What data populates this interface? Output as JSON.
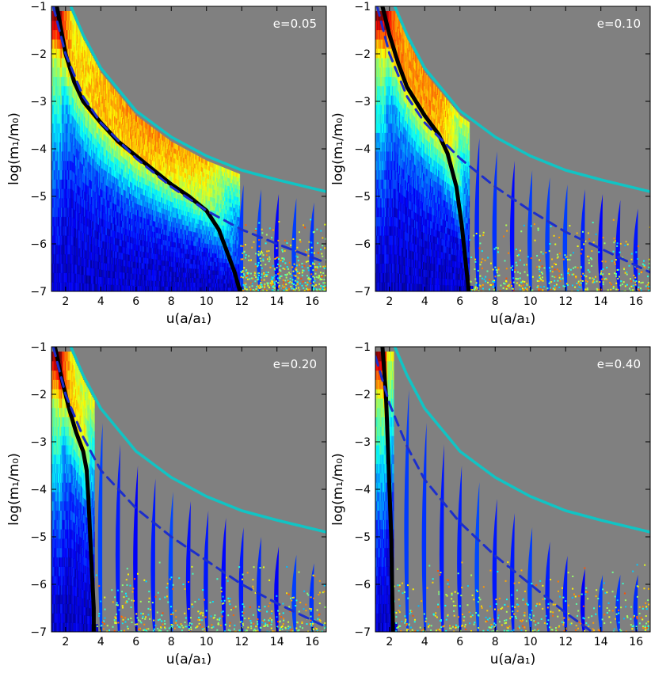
{
  "chart_data": [
    {
      "type": "heatmap",
      "label": "e=0.05",
      "xlabel": "u(a/a₁)",
      "ylabel": "log(m₁/m₀)",
      "xlim": [
        1.2,
        16.8
      ],
      "ylim": [
        -7,
        -1
      ],
      "xticks": [
        2,
        4,
        6,
        8,
        10,
        12,
        14,
        16
      ],
      "yticks": [
        -7,
        -6,
        -5,
        -4,
        -3,
        -2,
        -1
      ],
      "background_color": "#808080",
      "colormap": "jet",
      "series": [
        {
          "role": "solid",
          "color": "#000000",
          "points": [
            [
              1.5,
              -1.0
            ],
            [
              2.0,
              -2.0
            ],
            [
              2.5,
              -2.6
            ],
            [
              3.0,
              -3.0
            ],
            [
              4.0,
              -3.45
            ],
            [
              5.0,
              -3.85
            ],
            [
              6.0,
              -4.15
            ],
            [
              7.0,
              -4.45
            ],
            [
              8.0,
              -4.75
            ],
            [
              9.0,
              -5.0
            ],
            [
              10.0,
              -5.3
            ],
            [
              10.7,
              -5.7
            ],
            [
              11.2,
              -6.2
            ],
            [
              11.6,
              -6.6
            ],
            [
              11.9,
              -7.0
            ]
          ]
        },
        {
          "role": "dashed",
          "color": "#1c2ecc",
          "points": [
            [
              1.3,
              -1.0
            ],
            [
              2.0,
              -2.0
            ],
            [
              3.0,
              -2.9
            ],
            [
              4.0,
              -3.45
            ],
            [
              6.0,
              -4.2
            ],
            [
              8.0,
              -4.8
            ],
            [
              10.0,
              -5.3
            ],
            [
              12.0,
              -5.7
            ],
            [
              14.0,
              -6.0
            ],
            [
              16.8,
              -6.4
            ]
          ]
        },
        {
          "role": "cyan",
          "color": "#11c4c4",
          "points": [
            [
              2.3,
              -1.0
            ],
            [
              3.0,
              -1.6
            ],
            [
              4.0,
              -2.3
            ],
            [
              6.0,
              -3.2
            ],
            [
              8.0,
              -3.75
            ],
            [
              10.0,
              -4.15
            ],
            [
              12.0,
              -4.45
            ],
            [
              14.0,
              -4.65
            ],
            [
              16.8,
              -4.9
            ]
          ]
        }
      ]
    },
    {
      "type": "heatmap",
      "label": "e=0.10",
      "xlabel": "u(a/a₁)",
      "ylabel": "log(m₁/m₀)",
      "xlim": [
        1.2,
        16.8
      ],
      "ylim": [
        -7,
        -1
      ],
      "xticks": [
        2,
        4,
        6,
        8,
        10,
        12,
        14,
        16
      ],
      "yticks": [
        -7,
        -6,
        -5,
        -4,
        -3,
        -2,
        -1
      ],
      "background_color": "#808080",
      "colormap": "jet",
      "series": [
        {
          "role": "solid",
          "color": "#000000",
          "points": [
            [
              1.6,
              -1.0
            ],
            [
              2.0,
              -1.6
            ],
            [
              2.5,
              -2.2
            ],
            [
              3.0,
              -2.7
            ],
            [
              4.0,
              -3.3
            ],
            [
              4.8,
              -3.7
            ],
            [
              5.3,
              -4.1
            ],
            [
              5.8,
              -4.8
            ],
            [
              6.1,
              -5.6
            ],
            [
              6.3,
              -6.3
            ],
            [
              6.5,
              -7.0
            ]
          ]
        },
        {
          "role": "dashed",
          "color": "#1c2ecc",
          "points": [
            [
              1.3,
              -1.0
            ],
            [
              2.0,
              -2.0
            ],
            [
              3.0,
              -2.9
            ],
            [
              4.0,
              -3.45
            ],
            [
              6.0,
              -4.2
            ],
            [
              8.0,
              -4.8
            ],
            [
              10.0,
              -5.3
            ],
            [
              12.0,
              -5.75
            ],
            [
              14.0,
              -6.1
            ],
            [
              16.8,
              -6.6
            ]
          ]
        },
        {
          "role": "cyan",
          "color": "#11c4c4",
          "points": [
            [
              2.3,
              -1.0
            ],
            [
              3.0,
              -1.6
            ],
            [
              4.0,
              -2.3
            ],
            [
              6.0,
              -3.2
            ],
            [
              8.0,
              -3.75
            ],
            [
              10.0,
              -4.15
            ],
            [
              12.0,
              -4.45
            ],
            [
              14.0,
              -4.65
            ],
            [
              16.8,
              -4.9
            ]
          ]
        }
      ]
    },
    {
      "type": "heatmap",
      "label": "e=0.20",
      "xlabel": "u(a/a₁)",
      "ylabel": "log(m₁/m₀)",
      "xlim": [
        1.2,
        16.8
      ],
      "ylim": [
        -7,
        -1
      ],
      "xticks": [
        2,
        4,
        6,
        8,
        10,
        12,
        14,
        16
      ],
      "yticks": [
        -7,
        -6,
        -5,
        -4,
        -3,
        -2,
        -1
      ],
      "background_color": "#808080",
      "colormap": "jet",
      "series": [
        {
          "role": "solid",
          "color": "#000000",
          "points": [
            [
              1.4,
              -1.0
            ],
            [
              1.8,
              -1.7
            ],
            [
              2.2,
              -2.3
            ],
            [
              2.6,
              -2.8
            ],
            [
              3.0,
              -3.2
            ],
            [
              3.2,
              -3.6
            ],
            [
              3.3,
              -4.2
            ],
            [
              3.4,
              -5.0
            ],
            [
              3.5,
              -5.8
            ],
            [
              3.6,
              -6.5
            ],
            [
              3.6,
              -7.0
            ]
          ]
        },
        {
          "role": "dashed",
          "color": "#1c2ecc",
          "points": [
            [
              1.3,
              -1.0
            ],
            [
              2.0,
              -2.0
            ],
            [
              3.0,
              -2.9
            ],
            [
              4.0,
              -3.6
            ],
            [
              6.0,
              -4.4
            ],
            [
              8.0,
              -5.0
            ],
            [
              10.0,
              -5.5
            ],
            [
              12.0,
              -6.0
            ],
            [
              14.0,
              -6.4
            ],
            [
              16.8,
              -6.9
            ]
          ]
        },
        {
          "role": "cyan",
          "color": "#11c4c4",
          "points": [
            [
              2.3,
              -1.0
            ],
            [
              3.0,
              -1.6
            ],
            [
              4.0,
              -2.3
            ],
            [
              6.0,
              -3.2
            ],
            [
              8.0,
              -3.75
            ],
            [
              10.0,
              -4.15
            ],
            [
              12.0,
              -4.45
            ],
            [
              14.0,
              -4.65
            ],
            [
              16.8,
              -4.9
            ]
          ]
        }
      ]
    },
    {
      "type": "heatmap",
      "label": "e=0.40",
      "xlabel": "u(a/a₁)",
      "ylabel": "log(m₁/m₀)",
      "xlim": [
        1.2,
        16.8
      ],
      "ylim": [
        -7,
        -1
      ],
      "xticks": [
        2,
        4,
        6,
        8,
        10,
        12,
        14,
        16
      ],
      "yticks": [
        -7,
        -6,
        -5,
        -4,
        -3,
        -2,
        -1
      ],
      "background_color": "#808080",
      "colormap": "jet",
      "series": [
        {
          "role": "solid",
          "color": "#000000",
          "points": [
            [
              1.6,
              -1.0
            ],
            [
              1.7,
              -1.5
            ],
            [
              1.8,
              -2.0
            ],
            [
              1.9,
              -3.0
            ],
            [
              2.0,
              -4.0
            ],
            [
              2.1,
              -5.0
            ],
            [
              2.15,
              -6.0
            ],
            [
              2.2,
              -7.0
            ]
          ]
        },
        {
          "role": "dashed",
          "color": "#1c2ecc",
          "points": [
            [
              1.2,
              -1.2
            ],
            [
              2.0,
              -2.2
            ],
            [
              3.0,
              -3.1
            ],
            [
              4.0,
              -3.8
            ],
            [
              6.0,
              -4.7
            ],
            [
              8.0,
              -5.4
            ],
            [
              10.0,
              -6.0
            ],
            [
              12.0,
              -6.6
            ],
            [
              13.5,
              -7.0
            ]
          ]
        },
        {
          "role": "cyan",
          "color": "#11c4c4",
          "points": [
            [
              2.3,
              -1.0
            ],
            [
              3.0,
              -1.6
            ],
            [
              4.0,
              -2.3
            ],
            [
              6.0,
              -3.2
            ],
            [
              8.0,
              -3.75
            ],
            [
              10.0,
              -4.15
            ],
            [
              12.0,
              -4.45
            ],
            [
              14.0,
              -4.65
            ],
            [
              16.8,
              -4.9
            ]
          ]
        }
      ]
    }
  ]
}
